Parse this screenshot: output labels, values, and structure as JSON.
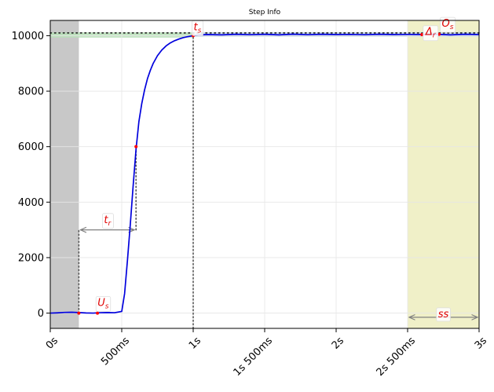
{
  "chart_data": {
    "type": "line",
    "title": "Step Info",
    "xlabel": "",
    "ylabel": "",
    "xlim": [
      0,
      3
    ],
    "ylim": [
      -550,
      10550
    ],
    "grid": true,
    "x_ticks": [
      {
        "value": 0,
        "label": "0s"
      },
      {
        "value": 0.5,
        "label": "500ms"
      },
      {
        "value": 1.0,
        "label": "1s"
      },
      {
        "value": 1.5,
        "label": "1s 500ms"
      },
      {
        "value": 2.0,
        "label": "2s"
      },
      {
        "value": 2.5,
        "label": "2s 500ms"
      },
      {
        "value": 3.0,
        "label": "3s"
      }
    ],
    "y_ticks": [
      {
        "value": 0,
        "label": "0"
      },
      {
        "value": 2000,
        "label": "2000"
      },
      {
        "value": 4000,
        "label": "4000"
      },
      {
        "value": 6000,
        "label": "6000"
      },
      {
        "value": 8000,
        "label": "8000"
      },
      {
        "value": 10000,
        "label": "10000"
      }
    ],
    "series": [
      {
        "color": "#0000dd",
        "x": [
          0,
          0.05,
          0.1,
          0.15,
          0.2,
          0.25,
          0.3,
          0.35,
          0.4,
          0.45,
          0.5,
          0.52,
          0.54,
          0.56,
          0.58,
          0.6,
          0.62,
          0.64,
          0.66,
          0.68,
          0.7,
          0.72,
          0.75,
          0.78,
          0.81,
          0.84,
          0.87,
          0.9,
          0.93,
          0.96,
          1.0,
          1.05,
          1.1,
          1.2,
          1.3,
          1.4,
          1.5,
          1.6,
          1.7,
          1.8,
          1.9,
          2.0,
          2.1,
          2.2,
          2.3,
          2.4,
          2.5,
          2.6,
          2.7,
          2.8,
          2.9,
          3.0
        ],
        "y": [
          0,
          10,
          25,
          30,
          20,
          5,
          0,
          15,
          20,
          15,
          60,
          700,
          1900,
          3200,
          4600,
          5900,
          6900,
          7550,
          8050,
          8450,
          8750,
          9000,
          9280,
          9480,
          9630,
          9740,
          9820,
          9880,
          9930,
          9965,
          10000,
          10030,
          10040,
          10030,
          10050,
          10035,
          10050,
          10030,
          10055,
          10035,
          10050,
          10040,
          10045,
          10035,
          10050,
          10040,
          10045,
          10040,
          10050,
          10030,
          10050,
          10040
        ]
      }
    ],
    "bands": {
      "initial": {
        "x": [
          0,
          0.2
        ],
        "color": "#c8c8c8"
      },
      "steady_state": {
        "x": [
          2.5,
          3.0
        ],
        "color": "#f0f0c8"
      },
      "green_strip": {
        "x": [
          0,
          1.0
        ],
        "y": [
          9930,
          10120
        ],
        "color": "#b8e0b8"
      },
      "blue_strip": {
        "x": [
          1.0,
          3.0
        ],
        "y": [
          9960,
          10130
        ],
        "color": "#c8dce8"
      }
    },
    "reference_level": {
      "y": 10100,
      "x": [
        0,
        3.0
      ]
    },
    "markers": [
      {
        "x": 0.2,
        "y": 0,
        "color": "#ff0000"
      },
      {
        "x": 0.33,
        "y": 0,
        "color": "#ff0000"
      },
      {
        "x": 0.6,
        "y": 6000,
        "color": "#ff0000"
      },
      {
        "x": 1.0,
        "y": 10000,
        "color": "#ff0000"
      },
      {
        "x": 2.6,
        "y": 10040,
        "color": "#ff0000"
      },
      {
        "x": 2.72,
        "y": 10050,
        "color": "#ff0000"
      }
    ],
    "guide_lines": [
      {
        "x": [
          0.2,
          0.2
        ],
        "y": [
          0,
          3000
        ]
      },
      {
        "x": [
          0.6,
          0.6
        ],
        "y": [
          3000,
          6000
        ]
      },
      {
        "x": [
          1.0,
          1.0
        ],
        "y": [
          -550,
          10000
        ]
      }
    ],
    "arrows": [
      {
        "x": [
          0.2,
          0.6
        ],
        "y": [
          3000,
          3000
        ]
      },
      {
        "x": [
          2.5,
          3.0
        ],
        "y": [
          -150,
          -150
        ]
      }
    ],
    "annotations": [
      {
        "base": "t",
        "sub": "r",
        "x": 0.4,
        "y": 3250
      },
      {
        "base": "U",
        "sub": "s",
        "x": 0.37,
        "y": 260
      },
      {
        "base": "t",
        "sub": "s",
        "x": 1.03,
        "y": 10200
      },
      {
        "base": "Δ",
        "sub": "r",
        "x": 2.66,
        "y": 10020
      },
      {
        "base": "O",
        "sub": "s",
        "x": 2.78,
        "y": 10320
      },
      {
        "base": "ss",
        "sub": "",
        "x": 2.75,
        "y": -150
      }
    ],
    "colors": {
      "line": "#0000dd",
      "marker": "#ff0000",
      "annotation_text": "#e00000",
      "guide": "#555555",
      "arrow": "#808080",
      "grid": "#e6e6e6"
    }
  }
}
